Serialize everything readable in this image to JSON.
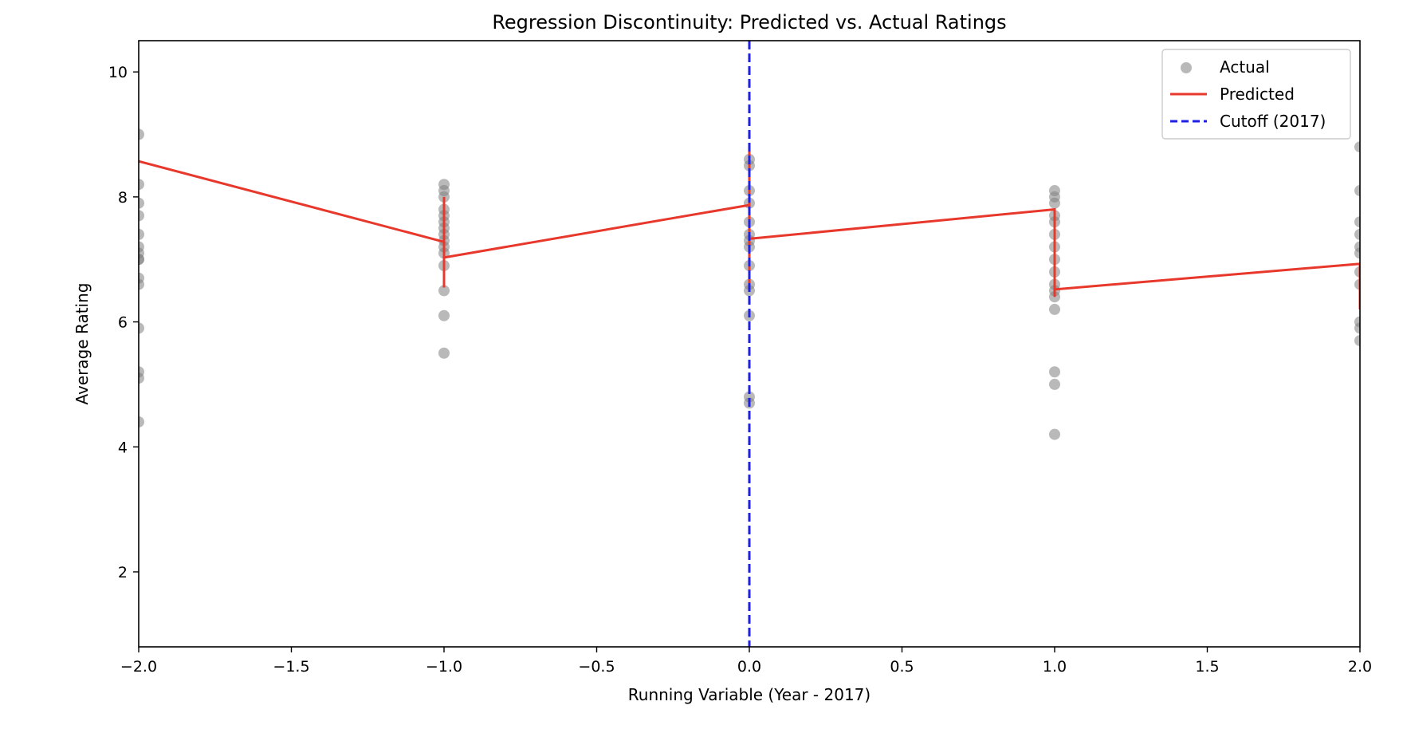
{
  "chart_data": {
    "type": "scatter",
    "title": "Regression Discontinuity: Predicted vs. Actual Ratings",
    "xlabel": "Running Variable (Year - 2017)",
    "ylabel": "Average Rating",
    "xlim": [
      -2.0,
      2.0
    ],
    "ylim": [
      0.8,
      10.5
    ],
    "x_ticks": [
      -2.0,
      -1.5,
      -1.0,
      -0.5,
      0.0,
      0.5,
      1.0,
      1.5,
      2.0
    ],
    "x_tick_labels": [
      "−2.0",
      "−1.5",
      "−1.0",
      "−0.5",
      "0.0",
      "0.5",
      "1.0",
      "1.5",
      "2.0"
    ],
    "y_ticks": [
      2,
      4,
      6,
      8,
      10
    ],
    "y_tick_labels": [
      "2",
      "4",
      "6",
      "8",
      "10"
    ],
    "grid": false,
    "legend_position": "top-right",
    "series": [
      {
        "name": "Actual",
        "kind": "scatter",
        "color": "#808080",
        "points": [
          [
            -2,
            9.0
          ],
          [
            -2,
            8.2
          ],
          [
            -2,
            7.9
          ],
          [
            -2,
            7.7
          ],
          [
            -2,
            7.4
          ],
          [
            -2,
            7.2
          ],
          [
            -2,
            7.1
          ],
          [
            -2,
            7.0
          ],
          [
            -2,
            7.0
          ],
          [
            -2,
            6.7
          ],
          [
            -2,
            6.6
          ],
          [
            -2,
            5.9
          ],
          [
            -2,
            5.2
          ],
          [
            -2,
            5.1
          ],
          [
            -2,
            4.4
          ],
          [
            -1,
            8.2
          ],
          [
            -1,
            8.1
          ],
          [
            -1,
            8.0
          ],
          [
            -1,
            7.8
          ],
          [
            -1,
            7.7
          ],
          [
            -1,
            7.6
          ],
          [
            -1,
            7.5
          ],
          [
            -1,
            7.4
          ],
          [
            -1,
            7.3
          ],
          [
            -1,
            7.2
          ],
          [
            -1,
            7.1
          ],
          [
            -1,
            6.9
          ],
          [
            -1,
            6.5
          ],
          [
            -1,
            6.1
          ],
          [
            -1,
            5.5
          ],
          [
            0,
            8.6
          ],
          [
            0,
            8.5
          ],
          [
            0,
            8.1
          ],
          [
            0,
            7.9
          ],
          [
            0,
            7.6
          ],
          [
            0,
            7.4
          ],
          [
            0,
            7.3
          ],
          [
            0,
            7.2
          ],
          [
            0,
            6.9
          ],
          [
            0,
            6.6
          ],
          [
            0,
            6.5
          ],
          [
            0,
            6.1
          ],
          [
            0,
            4.8
          ],
          [
            0,
            4.7
          ],
          [
            1,
            8.1
          ],
          [
            1,
            8.0
          ],
          [
            1,
            7.9
          ],
          [
            1,
            7.7
          ],
          [
            1,
            7.6
          ],
          [
            1,
            7.4
          ],
          [
            1,
            7.2
          ],
          [
            1,
            7.0
          ],
          [
            1,
            6.8
          ],
          [
            1,
            6.6
          ],
          [
            1,
            6.5
          ],
          [
            1,
            6.4
          ],
          [
            1,
            6.2
          ],
          [
            1,
            5.2
          ],
          [
            1,
            5.0
          ],
          [
            1,
            4.2
          ],
          [
            2,
            8.8
          ],
          [
            2,
            8.1
          ],
          [
            2,
            7.6
          ],
          [
            2,
            7.4
          ],
          [
            2,
            7.2
          ],
          [
            2,
            7.1
          ],
          [
            2,
            6.8
          ],
          [
            2,
            6.6
          ],
          [
            2,
            6.0
          ],
          [
            2,
            5.9
          ],
          [
            2,
            5.7
          ]
        ]
      },
      {
        "name": "Predicted",
        "kind": "line",
        "color": "#e8382c",
        "points": [
          [
            -2,
            8.57
          ],
          [
            -1,
            7.28
          ],
          [
            -1,
            8.0
          ],
          [
            -1,
            6.55
          ],
          [
            -1,
            7.03
          ],
          [
            0,
            7.87
          ],
          [
            0,
            8.8
          ],
          [
            0,
            6.5
          ],
          [
            0,
            7.33
          ],
          [
            1,
            7.8
          ],
          [
            1,
            6.4
          ],
          [
            1,
            6.52
          ],
          [
            2,
            6.93
          ],
          [
            2,
            6.2
          ]
        ]
      },
      {
        "name": "Cutoff (2017)",
        "kind": "vline",
        "color": "#1f1fe6",
        "x": 0
      }
    ]
  }
}
